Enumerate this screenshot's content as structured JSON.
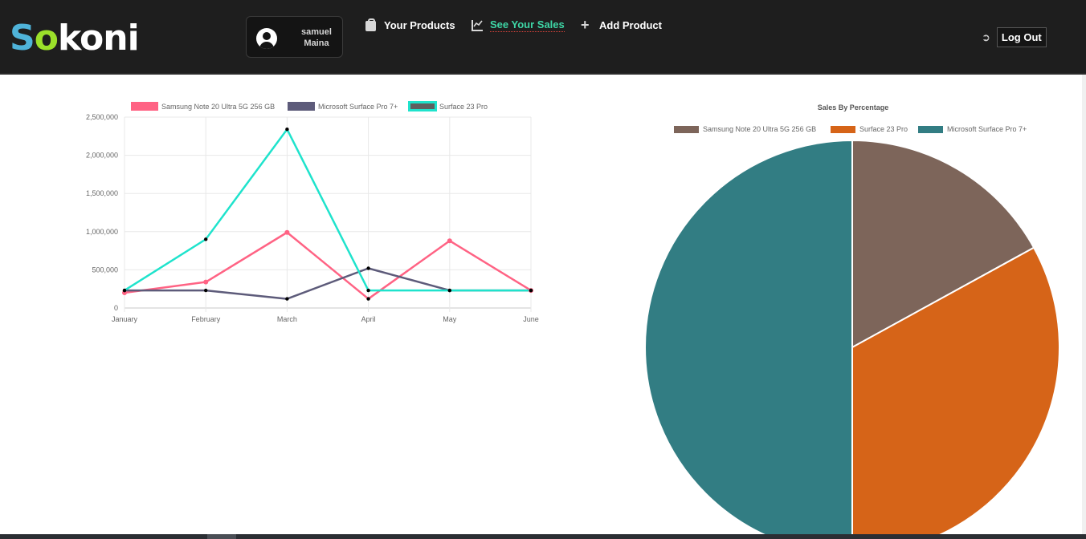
{
  "header": {
    "logo": {
      "s": "S",
      "o": "o",
      "rest": "koni"
    },
    "user": {
      "first": "samuel",
      "last": "Maina"
    },
    "nav": [
      {
        "label": "Your Products",
        "icon": "shopping-bag-icon"
      },
      {
        "label": "See Your Sales",
        "icon": "line-chart-icon",
        "active": true
      },
      {
        "label": "Add Product",
        "icon": "plus-icon"
      }
    ],
    "logout_label": "Log Out",
    "logout_icon": "sign-out-icon"
  },
  "colors": {
    "samsung": "#ff6384",
    "surface_pro": "#5d5b7a",
    "surface_23": "#1fe3cc",
    "pie_samsung": "#7d655a",
    "pie_surface_23": "#d66418",
    "pie_surface_pro": "#327d83",
    "active_nav": "#3ed6a6",
    "navbar_bg": "#1e1e1e"
  },
  "chart_data": [
    {
      "type": "line",
      "categories": [
        "January",
        "February",
        "March",
        "April",
        "May",
        "June"
      ],
      "series": [
        {
          "name": "Samsung Note 20 Ultra 5G 256 GB",
          "values": [
            200000,
            340000,
            990000,
            120000,
            880000,
            230000
          ]
        },
        {
          "name": "Microsoft Surface Pro 7+",
          "values": [
            230000,
            230000,
            120000,
            520000,
            230000,
            230000
          ]
        },
        {
          "name": "Surface 23 Pro",
          "values": [
            230000,
            900000,
            2340000,
            230000,
            230000,
            230000
          ]
        }
      ],
      "ylim": [
        0,
        2500000
      ],
      "yticks": [
        "0",
        "500,000",
        "1,000,000",
        "1,500,000",
        "2,000,000",
        "2,500,000"
      ],
      "grid": true,
      "legend": "top"
    },
    {
      "type": "pie",
      "title": "Sales By Percentage",
      "labels": [
        "Samsung Note 20 Ultra 5G 256 GB",
        "Surface 23 Pro",
        "Microsoft Surface Pro 7+"
      ],
      "values": [
        17,
        33,
        50
      ],
      "legend": "top"
    }
  ]
}
